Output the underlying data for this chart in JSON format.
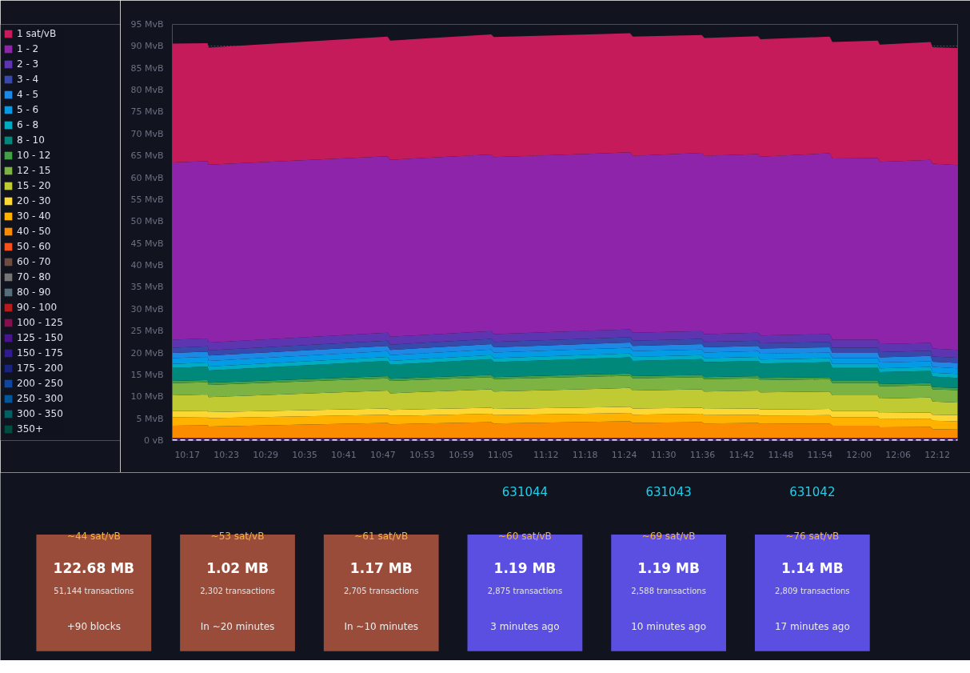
{
  "chart_data": [
    {
      "type": "area",
      "stacked": true,
      "legend": "left",
      "grid": "y",
      "x": [
        10.245,
        10.335,
        10.338,
        10.795,
        10.802,
        11.06,
        11.067,
        11.415,
        11.422,
        11.598,
        11.605,
        11.742,
        11.748,
        11.925,
        11.932,
        12.048,
        12.053,
        12.183,
        12.188,
        12.252
      ],
      "xlim": [
        10.245,
        12.252
      ],
      "xticks": [
        {
          "value": 10.2833,
          "label": "10:17"
        },
        {
          "value": 10.3833,
          "label": "10:23"
        },
        {
          "value": 10.4833,
          "label": "10:29"
        },
        {
          "value": 10.5833,
          "label": "10:35"
        },
        {
          "value": 10.6833,
          "label": "10:41"
        },
        {
          "value": 10.7833,
          "label": "10:47"
        },
        {
          "value": 10.8833,
          "label": "10:53"
        },
        {
          "value": 10.9833,
          "label": "10:59"
        },
        {
          "value": 11.0833,
          "label": "11:05"
        },
        {
          "value": 11.2,
          "label": "11:12"
        },
        {
          "value": 11.3,
          "label": "11:18"
        },
        {
          "value": 11.4,
          "label": "11:24"
        },
        {
          "value": 11.5,
          "label": "11:30"
        },
        {
          "value": 11.6,
          "label": "11:36"
        },
        {
          "value": 11.7,
          "label": "11:42"
        },
        {
          "value": 11.8,
          "label": "11:48"
        },
        {
          "value": 11.9,
          "label": "11:54"
        },
        {
          "value": 12.0,
          "label": "12:00"
        },
        {
          "value": 12.1,
          "label": "12:06"
        },
        {
          "value": 12.2,
          "label": "12:12"
        }
      ],
      "ylim": [
        0,
        95
      ],
      "yticks": [
        {
          "value": 0,
          "label": "0 vB"
        },
        {
          "value": 5,
          "label": "5 MvB"
        },
        {
          "value": 10,
          "label": "10 MvB"
        },
        {
          "value": 15,
          "label": "15 MvB"
        },
        {
          "value": 20,
          "label": "20 MvB"
        },
        {
          "value": 25,
          "label": "25 MvB"
        },
        {
          "value": 30,
          "label": "30 MvB"
        },
        {
          "value": 35,
          "label": "35 MvB"
        },
        {
          "value": 40,
          "label": "40 MvB"
        },
        {
          "value": 45,
          "label": "45 MvB"
        },
        {
          "value": 50,
          "label": "50 MvB"
        },
        {
          "value": 55,
          "label": "55 MvB"
        },
        {
          "value": 60,
          "label": "60 MvB"
        },
        {
          "value": 65,
          "label": "65 MvB"
        },
        {
          "value": 70,
          "label": "70 MvB"
        },
        {
          "value": 75,
          "label": "75 MvB"
        },
        {
          "value": 80,
          "label": "80 MvB"
        },
        {
          "value": 85,
          "label": "85 MvB"
        },
        {
          "value": 90,
          "label": "90 MvB"
        },
        {
          "value": 95,
          "label": "95 MvB"
        }
      ],
      "ref_lines": [
        {
          "axis": "y",
          "value": 0,
          "color": "#ffffff",
          "line_style": "dashed"
        }
      ],
      "series": [
        {
          "name": "350+",
          "color": "#004d40",
          "values": [
            null,
            null,
            null,
            null,
            null,
            null,
            null,
            null,
            null,
            null,
            null,
            null,
            null,
            null,
            null,
            null,
            null,
            null,
            null,
            null
          ]
        },
        {
          "name": "300 - 350",
          "color": "#006064",
          "values": [
            null,
            null,
            null,
            null,
            null,
            null,
            null,
            null,
            null,
            null,
            null,
            null,
            null,
            null,
            null,
            null,
            null,
            null,
            null,
            null
          ]
        },
        {
          "name": "250 - 300",
          "color": "#01579b",
          "values": [
            null,
            null,
            null,
            null,
            null,
            null,
            null,
            null,
            null,
            null,
            null,
            null,
            null,
            null,
            null,
            null,
            null,
            null,
            null,
            null
          ]
        },
        {
          "name": "200 - 250",
          "color": "#0d47a1",
          "values": [
            null,
            null,
            null,
            null,
            null,
            null,
            null,
            null,
            null,
            null,
            null,
            null,
            null,
            null,
            null,
            null,
            null,
            null,
            null,
            null
          ]
        },
        {
          "name": "175 - 200",
          "color": "#1a237e",
          "values": [
            null,
            null,
            null,
            null,
            null,
            null,
            null,
            null,
            null,
            null,
            null,
            null,
            null,
            null,
            null,
            null,
            null,
            null,
            null,
            null
          ]
        },
        {
          "name": "150 - 175",
          "color": "#311b92",
          "values": [
            0.3,
            0.3,
            0.3,
            0.3,
            0.3,
            0.3,
            0.3,
            0.3,
            0.3,
            0.3,
            0.3,
            0.3,
            0.3,
            0.3,
            0.3,
            0.3,
            0.3,
            0.3,
            0.3,
            0.3
          ]
        },
        {
          "name": "125 - 150",
          "color": "#4a148c",
          "values": [
            0.3,
            0.3,
            0.3,
            0.3,
            0.3,
            0.3,
            0.3,
            0.3,
            0.3,
            0.3,
            0.3,
            0.3,
            0.3,
            0.3,
            0.3,
            0.3,
            0.3,
            0.3,
            0.3,
            0.3
          ]
        },
        {
          "name": "100 - 125",
          "color": "#880e4f",
          "values": [
            null,
            null,
            null,
            null,
            null,
            null,
            null,
            null,
            null,
            null,
            null,
            null,
            null,
            null,
            null,
            null,
            null,
            null,
            null,
            null
          ]
        },
        {
          "name": "90 - 100",
          "color": "#b71c1c",
          "values": [
            null,
            null,
            null,
            null,
            null,
            null,
            null,
            null,
            null,
            null,
            null,
            null,
            null,
            null,
            null,
            null,
            null,
            null,
            null,
            null
          ]
        },
        {
          "name": "80 - 90",
          "color": "#546e7a",
          "values": [
            null,
            null,
            null,
            null,
            null,
            null,
            null,
            null,
            null,
            null,
            null,
            null,
            null,
            null,
            null,
            null,
            null,
            null,
            null,
            null
          ]
        },
        {
          "name": "70 - 80",
          "color": "#757575",
          "values": [
            null,
            null,
            null,
            null,
            null,
            null,
            null,
            null,
            null,
            null,
            null,
            null,
            null,
            null,
            null,
            null,
            null,
            null,
            null,
            null
          ]
        },
        {
          "name": "60 - 70",
          "color": "#6d4c41",
          "values": [
            null,
            null,
            null,
            null,
            null,
            null,
            null,
            null,
            null,
            null,
            null,
            null,
            null,
            null,
            null,
            null,
            null,
            null,
            null,
            null
          ]
        },
        {
          "name": "50 - 60",
          "color": "#f4511e",
          "values": [
            null,
            null,
            null,
            null,
            null,
            null,
            null,
            null,
            null,
            null,
            null,
            null,
            null,
            null,
            null,
            null,
            null,
            null,
            null,
            null
          ]
        },
        {
          "name": "40 - 50",
          "color": "#fb8c00",
          "values": [
            2.8,
            2.9,
            2.6,
            3.4,
            3.1,
            3.6,
            3.3,
            3.8,
            3.4,
            3.6,
            3.3,
            3.4,
            3.2,
            3.3,
            2.8,
            2.8,
            2.4,
            2.5,
            2.0,
            1.9
          ]
        },
        {
          "name": "30 - 40",
          "color": "#ffb300",
          "values": [
            1.9,
            1.9,
            1.9,
            1.9,
            1.9,
            1.9,
            1.9,
            1.9,
            1.9,
            1.9,
            1.9,
            1.9,
            1.9,
            1.9,
            1.9,
            1.9,
            1.9,
            1.9,
            1.9,
            1.9
          ]
        },
        {
          "name": "20 - 30",
          "color": "#fdd835",
          "values": [
            1.4,
            1.4,
            1.4,
            1.4,
            1.4,
            1.4,
            1.4,
            1.4,
            1.4,
            1.4,
            1.4,
            1.4,
            1.4,
            1.4,
            1.4,
            1.4,
            1.4,
            1.4,
            1.4,
            1.4
          ]
        },
        {
          "name": "15 - 20",
          "color": "#c0ca33",
          "values": [
            3.6,
            3.7,
            3.4,
            4.1,
            3.8,
            4.2,
            4.0,
            4.3,
            4.1,
            4.2,
            4.0,
            4.1,
            3.9,
            4.0,
            3.6,
            3.6,
            3.3,
            3.4,
            3.0,
            2.9
          ]
        },
        {
          "name": "12 - 15",
          "color": "#7cb342",
          "values": [
            2.8,
            2.8,
            2.8,
            2.8,
            2.8,
            2.8,
            2.8,
            2.8,
            2.8,
            2.8,
            2.8,
            2.8,
            2.8,
            2.8,
            2.8,
            2.8,
            2.8,
            2.8,
            2.8,
            2.8
          ]
        },
        {
          "name": "10 - 12",
          "color": "#43a047",
          "values": [
            0.5,
            0.5,
            0.5,
            0.5,
            0.5,
            0.5,
            0.5,
            0.5,
            0.5,
            0.5,
            0.5,
            0.5,
            0.5,
            0.5,
            0.5,
            0.5,
            0.5,
            0.5,
            0.5,
            0.5
          ]
        },
        {
          "name": "8 - 10",
          "color": "#00897b",
          "values": [
            3.0,
            3.1,
            2.8,
            3.5,
            3.2,
            3.6,
            3.4,
            3.7,
            3.5,
            3.6,
            3.4,
            3.5,
            3.3,
            3.4,
            3.0,
            3.0,
            2.7,
            2.8,
            2.4,
            2.3
          ]
        },
        {
          "name": "6 - 8",
          "color": "#00acc1",
          "values": [
            0.9,
            0.9,
            0.9,
            0.9,
            0.9,
            0.9,
            0.9,
            0.9,
            0.9,
            0.9,
            0.9,
            0.9,
            0.9,
            0.9,
            0.9,
            0.9,
            0.9,
            0.9,
            0.9,
            0.9
          ]
        },
        {
          "name": "5 - 6",
          "color": "#039be5",
          "values": [
            1.3,
            1.3,
            1.3,
            1.3,
            1.3,
            1.3,
            1.3,
            1.3,
            1.3,
            1.3,
            1.3,
            1.3,
            1.3,
            1.3,
            1.3,
            1.3,
            1.3,
            1.3,
            1.3,
            1.3
          ]
        },
        {
          "name": "4 - 5",
          "color": "#1e88e5",
          "values": [
            1.2,
            1.2,
            1.2,
            1.2,
            1.2,
            1.2,
            1.2,
            1.2,
            1.2,
            1.2,
            1.2,
            1.2,
            1.2,
            1.2,
            1.2,
            1.2,
            1.2,
            1.2,
            1.2,
            1.2
          ]
        },
        {
          "name": "3 - 4",
          "color": "#3949ab",
          "values": [
            1.2,
            1.2,
            1.2,
            1.2,
            1.2,
            1.2,
            1.2,
            1.2,
            1.2,
            1.2,
            1.2,
            1.2,
            1.2,
            1.2,
            1.2,
            1.2,
            1.2,
            1.2,
            1.2,
            1.2
          ]
        },
        {
          "name": "2 - 3",
          "color": "#5e35b1",
          "values": [
            1.8,
            1.8,
            1.8,
            1.8,
            1.8,
            1.8,
            1.8,
            1.8,
            1.8,
            1.8,
            1.8,
            1.8,
            1.8,
            1.8,
            1.8,
            1.8,
            1.8,
            1.8,
            1.8,
            1.8
          ]
        },
        {
          "name": "1 - 2",
          "color": "#8e24aa",
          "values": [
            40.5,
            40.5,
            40.6,
            40.3,
            40.4,
            40.3,
            40.4,
            40.4,
            40.4,
            40.7,
            40.7,
            40.8,
            40.8,
            41.3,
            41.4,
            41.5,
            41.6,
            41.8,
            42.2,
            42.2
          ]
        },
        {
          "name": "1 sat/vB",
          "color": "#c51b5a",
          "values": [
            27.1,
            26.9,
            26.7,
            27.3,
            27.2,
            27.4,
            27.4,
            27.2,
            27.2,
            26.9,
            26.9,
            26.9,
            26.8,
            26.6,
            26.6,
            26.8,
            26.8,
            26.9,
            26.6,
            26.7
          ]
        }
      ]
    },
    {
      "type": "other",
      "colors": [
        "#9a4c3a",
        "#9a4c3a",
        "#9a4c3a",
        "#5a4fe0",
        "#5a4fe0",
        "#5a4fe0"
      ],
      "annotations": [
        "631044",
        "631043",
        "631042",
        "~44 sat/vB",
        "122.68 MB",
        "51,144 transactions",
        "+90 blocks",
        "~53 sat/vB",
        "1.02 MB",
        "2,302 transactions",
        "In ~20 minutes",
        "~61 sat/vB",
        "1.17 MB",
        "2,705 transactions",
        "In ~10 minutes",
        "~60 sat/vB",
        "1.19 MB",
        "2,875 transactions",
        "3 minutes ago",
        "~69 sat/vB",
        "1.19 MB",
        "2,588 transactions",
        "10 minutes ago",
        "~76 sat/vB",
        "1.14 MB",
        "2,809 transactions",
        "17 minutes ago"
      ]
    }
  ]
}
